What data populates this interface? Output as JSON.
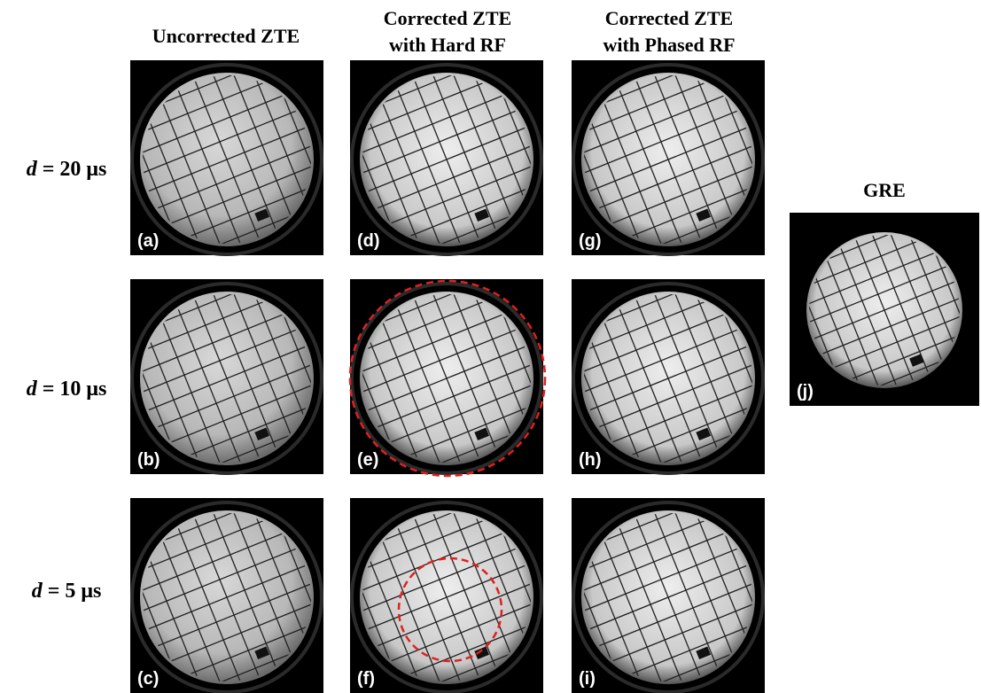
{
  "column_headers": [
    [
      "Uncorrected ZTE"
    ],
    [
      "Corrected ZTE",
      "with Hard RF"
    ],
    [
      "Corrected ZTE",
      "with Phased RF"
    ]
  ],
  "rows": [
    {
      "variable": "d",
      "text": "= 20 μs"
    },
    {
      "variable": "d",
      "text": "= 10 μs"
    },
    {
      "variable": "d",
      "text": "= 5 μs"
    }
  ],
  "panels": [
    "(a)",
    "(b)",
    "(c)",
    "(d)",
    "(e)",
    "(f)",
    "(g)",
    "(h)",
    "(i)"
  ],
  "reference": {
    "title": "GRE",
    "label": "(j)"
  }
}
